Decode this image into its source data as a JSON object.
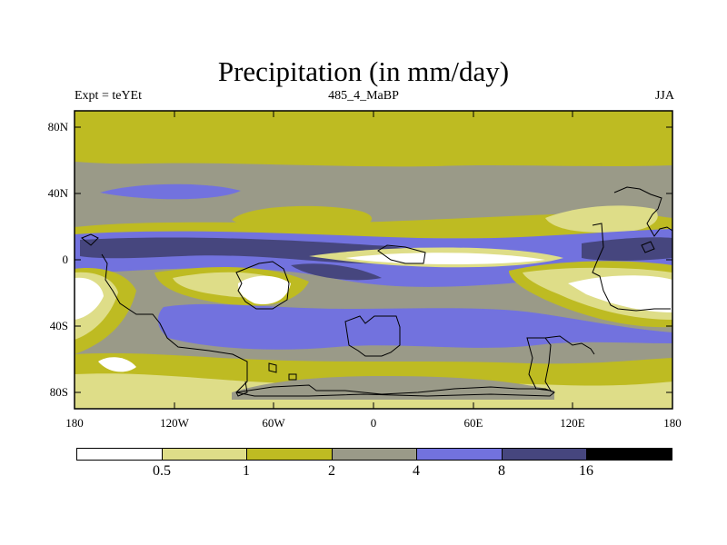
{
  "title": "Precipitation (in mm/day)",
  "subtitle_left": "Expt = teYEt",
  "subtitle_center": "485_4_MaBP",
  "subtitle_right": "JJA",
  "map": {
    "projection": "cylindrical-equidistant",
    "lon_range": [
      -180,
      180
    ],
    "lat_range": [
      -90,
      90
    ],
    "lat_ticks": [
      "80N",
      "40N",
      "0",
      "40S",
      "80S"
    ],
    "lon_ticks": [
      "180",
      "120W",
      "60W",
      "0",
      "60E",
      "120E",
      "180"
    ]
  },
  "colorbar": {
    "levels": [
      "0.5",
      "1",
      "2",
      "4",
      "8",
      "16"
    ],
    "colors": [
      "#ffffff",
      "#dedd88",
      "#bebb22",
      "#9a9a88",
      "#7272de",
      "#46467e",
      "#000000"
    ]
  }
}
